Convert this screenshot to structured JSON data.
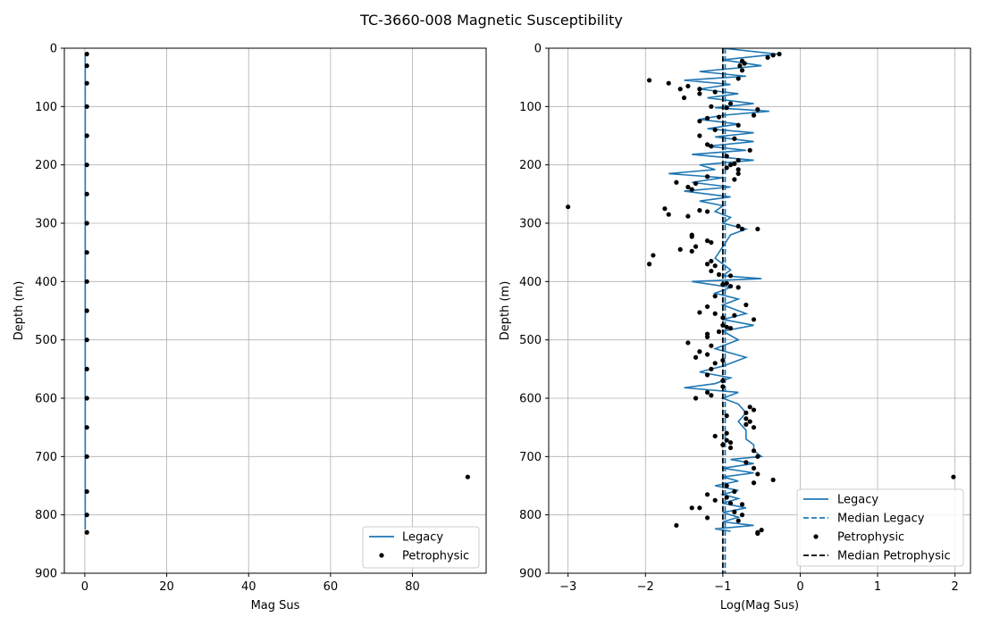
{
  "figure": {
    "title": "TC-3660-008 Magnetic Susceptibility"
  },
  "colors": {
    "legacy": "#1f77b4",
    "petrophysic": "#000000",
    "grid": "#b0b0b0"
  },
  "chart_data": [
    {
      "type": "line",
      "panel": "left",
      "xlabel": "Mag Sus",
      "ylabel": "Depth (m)",
      "xlim": [
        -5,
        98
      ],
      "ylim": [
        900,
        0
      ],
      "y_inverted": true,
      "grid": true,
      "legend_position": "lower-right",
      "xticks": [
        0,
        20,
        40,
        60,
        80
      ],
      "yticks": [
        0,
        100,
        200,
        300,
        400,
        500,
        600,
        700,
        800,
        900
      ],
      "series": [
        {
          "name": "Legacy",
          "kind": "line",
          "depth": [
            10,
            50,
            100,
            150,
            200,
            250,
            300,
            350,
            400,
            450,
            500,
            550,
            600,
            650,
            700,
            750,
            800,
            825
          ],
          "values": [
            0.1,
            0.1,
            0.1,
            0.1,
            0.1,
            0.1,
            0.1,
            0.1,
            0.1,
            0.1,
            0.1,
            0.1,
            0.1,
            0.1,
            0.1,
            0.1,
            0.1,
            0.1
          ]
        },
        {
          "name": "Petrophysic",
          "kind": "scatter",
          "points": [
            [
              0.5,
              10
            ],
            [
              0.5,
              30
            ],
            [
              0.5,
              60
            ],
            [
              0.5,
              100
            ],
            [
              0.5,
              150
            ],
            [
              0.5,
              200
            ],
            [
              0.5,
              250
            ],
            [
              0.5,
              300
            ],
            [
              0.5,
              350
            ],
            [
              0.5,
              400
            ],
            [
              0.5,
              450
            ],
            [
              0.5,
              500
            ],
            [
              0.5,
              550
            ],
            [
              0.5,
              600
            ],
            [
              0.5,
              650
            ],
            [
              0.5,
              700
            ],
            [
              93.5,
              735
            ],
            [
              0.5,
              760
            ],
            [
              0.5,
              800
            ],
            [
              0.5,
              830
            ]
          ]
        }
      ]
    },
    {
      "type": "line",
      "panel": "right",
      "xlabel": "Log(Mag Sus)",
      "ylabel": "Depth (m)",
      "xlim": [
        -3.25,
        2.2
      ],
      "ylim": [
        900,
        0
      ],
      "y_inverted": true,
      "grid": true,
      "legend_position": "lower-right",
      "xticks": [
        -3,
        -2,
        -1,
        0,
        1,
        2
      ],
      "xtick_labels": [
        "−3",
        "−2",
        "−1",
        "0",
        "1",
        "2"
      ],
      "yticks": [
        0,
        100,
        200,
        300,
        400,
        500,
        600,
        700,
        800,
        900
      ],
      "series": [
        {
          "name": "Legacy",
          "kind": "line",
          "points": [
            [
              -1.0,
              0
            ],
            [
              -0.3,
              10
            ],
            [
              -1.0,
              20
            ],
            [
              -0.5,
              30
            ],
            [
              -1.3,
              40
            ],
            [
              -0.7,
              48
            ],
            [
              -1.5,
              55
            ],
            [
              -0.9,
              62
            ],
            [
              -1.3,
              70
            ],
            [
              -0.8,
              78
            ],
            [
              -1.2,
              85
            ],
            [
              -0.6,
              95
            ],
            [
              -1.1,
              102
            ],
            [
              -0.4,
              108
            ],
            [
              -1.0,
              115
            ],
            [
              -1.3,
              122
            ],
            [
              -0.8,
              130
            ],
            [
              -1.2,
              138
            ],
            [
              -0.6,
              145
            ],
            [
              -1.1,
              152
            ],
            [
              -0.6,
              160
            ],
            [
              -1.2,
              168
            ],
            [
              -0.7,
              175
            ],
            [
              -1.4,
              182
            ],
            [
              -0.6,
              192
            ],
            [
              -1.3,
              200
            ],
            [
              -1.1,
              208
            ],
            [
              -1.7,
              215
            ],
            [
              -1.0,
              222
            ],
            [
              -1.4,
              230
            ],
            [
              -0.9,
              238
            ],
            [
              -1.5,
              245
            ],
            [
              -0.9,
              255
            ],
            [
              -1.3,
              262
            ],
            [
              -1.0,
              270
            ],
            [
              -1.1,
              280
            ],
            [
              -0.9,
              290
            ],
            [
              -1.0,
              300
            ],
            [
              -0.7,
              310
            ],
            [
              -0.9,
              320
            ],
            [
              -1.0,
              340
            ],
            [
              -1.1,
              360
            ],
            [
              -0.9,
              380
            ],
            [
              -1.0,
              390
            ],
            [
              -0.5,
              395
            ],
            [
              -1.4,
              400
            ],
            [
              -0.9,
              410
            ],
            [
              -1.1,
              420
            ],
            [
              -0.8,
              430
            ],
            [
              -1.0,
              440
            ],
            [
              -0.7,
              455
            ],
            [
              -1.0,
              465
            ],
            [
              -0.6,
              475
            ],
            [
              -1.0,
              485
            ],
            [
              -0.8,
              500
            ],
            [
              -1.1,
              515
            ],
            [
              -0.7,
              530
            ],
            [
              -1.0,
              545
            ],
            [
              -1.3,
              555
            ],
            [
              -0.9,
              565
            ],
            [
              -1.1,
              575
            ],
            [
              -1.5,
              582
            ],
            [
              -0.8,
              590
            ],
            [
              -1.0,
              600
            ],
            [
              -0.8,
              610
            ],
            [
              -0.7,
              625
            ],
            [
              -0.8,
              640
            ],
            [
              -0.7,
              655
            ],
            [
              -0.7,
              670
            ],
            [
              -0.6,
              680
            ],
            [
              -0.6,
              690
            ],
            [
              -0.5,
              700
            ],
            [
              -0.9,
              705
            ],
            [
              -0.6,
              712
            ],
            [
              -1.0,
              720
            ],
            [
              -0.6,
              728
            ],
            [
              -1.0,
              735
            ],
            [
              -0.8,
              742
            ],
            [
              -1.1,
              750
            ],
            [
              -0.8,
              758
            ],
            [
              -1.0,
              765
            ],
            [
              -0.8,
              772
            ],
            [
              -1.0,
              780
            ],
            [
              -0.7,
              788
            ],
            [
              -1.0,
              796
            ],
            [
              -0.8,
              804
            ],
            [
              -1.0,
              812
            ],
            [
              -0.6,
              818
            ],
            [
              -1.1,
              824
            ],
            [
              -0.9,
              828
            ]
          ]
        },
        {
          "name": "Median Legacy",
          "kind": "dashed-line",
          "x": -0.97
        },
        {
          "name": "Petrophysic",
          "kind": "scatter",
          "points": [
            [
              -0.27,
              10
            ],
            [
              -0.35,
              12
            ],
            [
              -0.42,
              16
            ],
            [
              -0.75,
              22
            ],
            [
              -0.72,
              26
            ],
            [
              -0.78,
              30
            ],
            [
              -0.75,
              38
            ],
            [
              -0.8,
              52
            ],
            [
              -1.95,
              55
            ],
            [
              -1.7,
              60
            ],
            [
              -1.45,
              65
            ],
            [
              -1.3,
              70
            ],
            [
              -1.55,
              70
            ],
            [
              -1.1,
              75
            ],
            [
              -1.5,
              85
            ],
            [
              -1.3,
              78
            ],
            [
              -0.9,
              95
            ],
            [
              -1.15,
              100
            ],
            [
              -0.95,
              102
            ],
            [
              -0.55,
              105
            ],
            [
              -0.6,
              115
            ],
            [
              -1.05,
              118
            ],
            [
              -1.2,
              120
            ],
            [
              -1.3,
              125
            ],
            [
              -0.8,
              132
            ],
            [
              -1.1,
              140
            ],
            [
              -1.3,
              150
            ],
            [
              -0.85,
              155
            ],
            [
              -1.2,
              165
            ],
            [
              -1.15,
              168
            ],
            [
              -0.65,
              175
            ],
            [
              -0.95,
              185
            ],
            [
              -0.8,
              192
            ],
            [
              -0.85,
              198
            ],
            [
              -0.9,
              200
            ],
            [
              -0.95,
              205
            ],
            [
              -0.8,
              208
            ],
            [
              -0.8,
              215
            ],
            [
              -1.2,
              220
            ],
            [
              -0.85,
              225
            ],
            [
              -1.6,
              230
            ],
            [
              -1.35,
              232
            ],
            [
              -1.45,
              238
            ],
            [
              -1.4,
              242
            ],
            [
              -3.0,
              272
            ],
            [
              -1.75,
              275
            ],
            [
              -1.3,
              278
            ],
            [
              -1.2,
              280
            ],
            [
              -1.7,
              285
            ],
            [
              -1.45,
              288
            ],
            [
              -0.8,
              305
            ],
            [
              -0.75,
              310
            ],
            [
              -0.55,
              310
            ],
            [
              -1.4,
              320
            ],
            [
              -1.4,
              323
            ],
            [
              -1.2,
              330
            ],
            [
              -1.15,
              333
            ],
            [
              -1.35,
              340
            ],
            [
              -1.55,
              345
            ],
            [
              -1.4,
              348
            ],
            [
              -1.9,
              355
            ],
            [
              -1.15,
              365
            ],
            [
              -1.2,
              370
            ],
            [
              -1.95,
              370
            ],
            [
              -1.1,
              373
            ],
            [
              -1.15,
              382
            ],
            [
              -1.05,
              388
            ],
            [
              -0.9,
              390
            ],
            [
              -0.95,
              403
            ],
            [
              -1.0,
              405
            ],
            [
              -0.9,
              408
            ],
            [
              -0.8,
              410
            ],
            [
              -1.1,
              425
            ],
            [
              -0.7,
              440
            ],
            [
              -1.2,
              443
            ],
            [
              -1.3,
              453
            ],
            [
              -1.1,
              455
            ],
            [
              -0.85,
              458
            ],
            [
              -1.0,
              462
            ],
            [
              -0.6,
              465
            ],
            [
              -1.0,
              475
            ],
            [
              -0.95,
              478
            ],
            [
              -0.9,
              480
            ],
            [
              -1.05,
              486
            ],
            [
              -1.2,
              490
            ],
            [
              -1.2,
              495
            ],
            [
              -1.45,
              505
            ],
            [
              -1.15,
              510
            ],
            [
              -1.3,
              520
            ],
            [
              -1.2,
              525
            ],
            [
              -1.35,
              530
            ],
            [
              -1.0,
              535
            ],
            [
              -1.1,
              540
            ],
            [
              -1.15,
              550
            ],
            [
              -1.2,
              560
            ],
            [
              -1.0,
              570
            ],
            [
              -1.0,
              580
            ],
            [
              -1.2,
              590
            ],
            [
              -1.15,
              595
            ],
            [
              -1.35,
              600
            ],
            [
              -0.65,
              615
            ],
            [
              -0.6,
              620
            ],
            [
              -0.7,
              625
            ],
            [
              -0.95,
              630
            ],
            [
              -0.7,
              635
            ],
            [
              -0.65,
              640
            ],
            [
              -0.7,
              645
            ],
            [
              -0.6,
              650
            ],
            [
              -0.95,
              660
            ],
            [
              -1.1,
              665
            ],
            [
              -0.95,
              672
            ],
            [
              -0.9,
              676
            ],
            [
              -1.0,
              680
            ],
            [
              -0.9,
              685
            ],
            [
              -0.6,
              690
            ],
            [
              -0.55,
              700
            ],
            [
              -0.7,
              710
            ],
            [
              -0.6,
              720
            ],
            [
              -0.55,
              730
            ],
            [
              -0.35,
              740
            ],
            [
              -0.6,
              745
            ],
            [
              -0.95,
              750
            ],
            [
              1.98,
              735
            ],
            [
              -0.85,
              760
            ],
            [
              -1.2,
              765
            ],
            [
              -0.95,
              770
            ],
            [
              -1.1,
              775
            ],
            [
              -0.9,
              780
            ],
            [
              -0.75,
              782
            ],
            [
              -1.4,
              788
            ],
            [
              -1.3,
              788
            ],
            [
              -0.85,
              795
            ],
            [
              -0.75,
              800
            ],
            [
              -1.2,
              805
            ],
            [
              -0.8,
              810
            ],
            [
              -1.6,
              818
            ],
            [
              -0.5,
              826
            ],
            [
              -0.55,
              830
            ],
            [
              -0.55,
              832
            ]
          ]
        },
        {
          "name": "Median Petrophysic",
          "kind": "dashed-line",
          "x": -1.0
        }
      ]
    }
  ]
}
